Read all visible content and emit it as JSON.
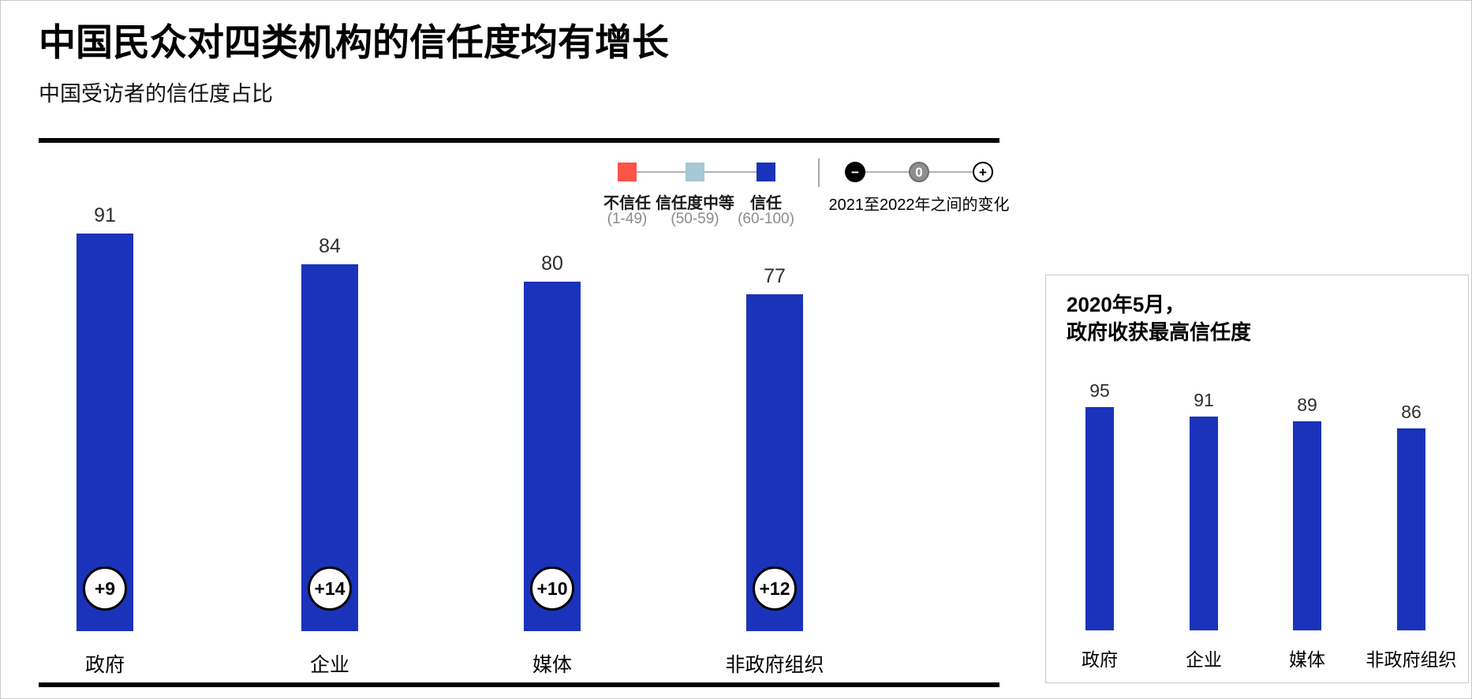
{
  "page": {
    "title": "中国民众对四类机构的信任度均有增长",
    "subtitle": "中国受访者的信任度占比"
  },
  "legend": {
    "items": [
      {
        "label": "不信任",
        "range": "(1-49)",
        "color": "#fb5449"
      },
      {
        "label": "信任度中等",
        "range": "(50-59)",
        "color": "#a6c7d5"
      },
      {
        "label": "信任",
        "range": "(60-100)",
        "color": "#1b33bb"
      }
    ],
    "change": {
      "minus": "−",
      "zero": "0",
      "plus": "+",
      "label": "2021至2022年之间的变化"
    }
  },
  "panel": {
    "title_line1": "2020年5月，",
    "title_line2": "政府收获最高信任度"
  },
  "chart_data": [
    {
      "type": "bar",
      "title": "中国受访者的信任度占比",
      "categories": [
        "政府",
        "企业",
        "媒体",
        "非政府组织"
      ],
      "values": [
        91,
        84,
        80,
        77
      ],
      "changes": [
        "+9",
        "+14",
        "+10",
        "+12"
      ],
      "ylim": [
        0,
        100
      ],
      "bar_color": "#1b33bb",
      "legend_position": "top-right",
      "grid": false
    },
    {
      "type": "bar",
      "title": "2020年5月，政府收获最高信任度",
      "categories": [
        "政府",
        "企业",
        "媒体",
        "非政府组织"
      ],
      "values": [
        95,
        91,
        89,
        86
      ],
      "ylim": [
        0,
        100
      ],
      "bar_color": "#1b33bb",
      "grid": false
    }
  ]
}
